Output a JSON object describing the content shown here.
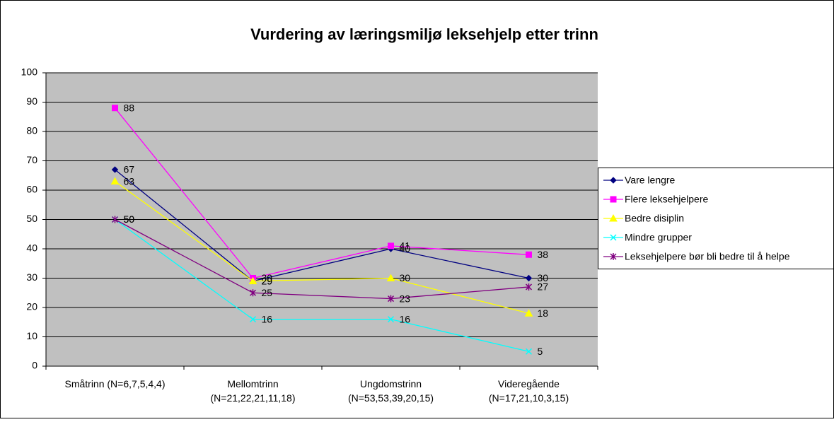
{
  "chart_data": {
    "type": "line",
    "title": "Vurdering av læringsmiljø leksehjelp etter trinn",
    "categories": [
      "Småtrinn (N=6,7,5,4,4)",
      "Mellomtrinn\n(N=21,22,21,11,18)",
      "Ungdomstrinn\n(N=53,53,39,20,15)",
      "Videregående\n(N=17,21,10,3,15)"
    ],
    "series": [
      {
        "name": "Vare lengre",
        "color": "#000080",
        "marker": "diamond",
        "values": [
          67,
          29,
          40,
          30
        ]
      },
      {
        "name": "Flere leksehjelpere",
        "color": "#ff00ff",
        "marker": "square",
        "values": [
          88,
          30,
          41,
          38
        ]
      },
      {
        "name": "Bedre disiplin",
        "color": "#ffff00",
        "marker": "triangle",
        "values": [
          63,
          29,
          30,
          18
        ]
      },
      {
        "name": "Mindre grupper",
        "color": "#00ffff",
        "marker": "x",
        "values": [
          50,
          16,
          16,
          5
        ]
      },
      {
        "name": "Leksehjelpere bør bli bedre til å helpe",
        "color": "#800080",
        "marker": "star",
        "values": [
          50,
          25,
          23,
          27
        ]
      }
    ],
    "ylim": [
      0,
      100
    ],
    "yticks": [
      0,
      10,
      20,
      30,
      40,
      50,
      60,
      70,
      80,
      90,
      100
    ],
    "grid": true,
    "legend": "right"
  }
}
